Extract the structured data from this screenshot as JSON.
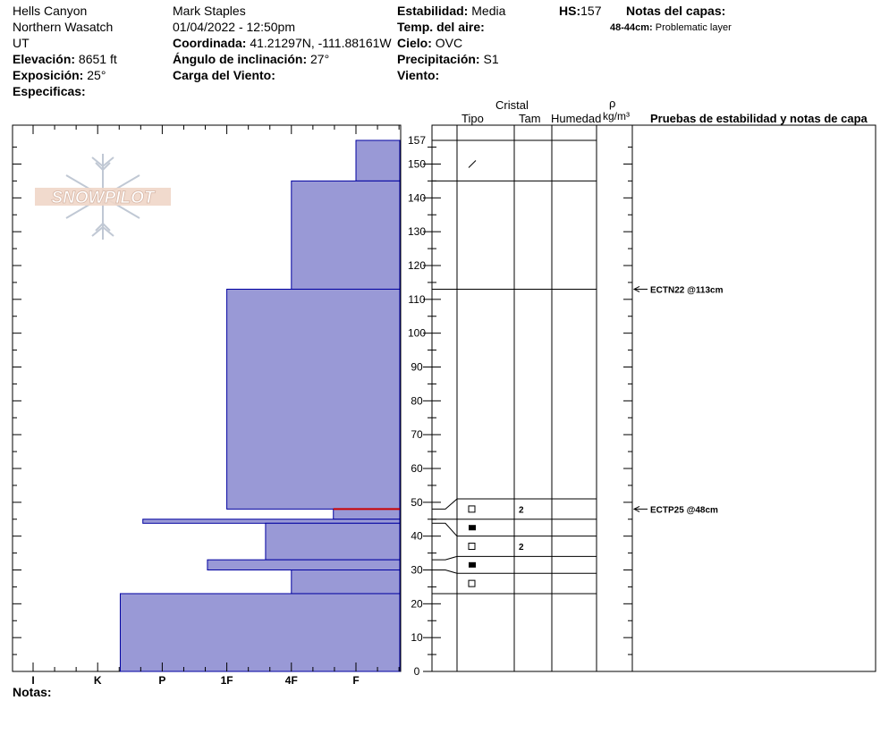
{
  "header": {
    "location": "Hells Canyon",
    "range": "Northern Wasatch",
    "state": "UT",
    "elevation_label": "Elevación:",
    "elevation_value": "8651 ft",
    "aspect_label": "Exposición:",
    "aspect_value": "25°",
    "specifics_label": "Especificas:",
    "observer": "Mark Staples",
    "datetime": "01/04/2022 - 12:50pm",
    "coord_label": "Coordinada:",
    "coord_value": "41.21297N, -111.88161W",
    "slope_label": "Ángulo de inclinación:",
    "slope_value": "27°",
    "wind_load_label": "Carga del Viento:",
    "stability_label": "Estabilidad:",
    "stability_value": "Media",
    "air_temp_label": "Temp. del aire:",
    "sky_label": "Cielo:",
    "sky_value": "OVC",
    "precip_label": "Precipitación:",
    "precip_value": "S1",
    "wind_label": "Viento:",
    "hs_label": "HS:",
    "hs_value": "157",
    "layer_notes_label": "Notas del capas:",
    "layer_note_depth": "48-44cm:",
    "layer_note_text": "Problematic layer",
    "notes_label": "Notas:"
  },
  "logo": {
    "text": "SNOWPILOT"
  },
  "columns": {
    "crystal": "Cristal",
    "type": "Tipo",
    "size": "Tam",
    "moisture": "Humedad",
    "rho": "ρ",
    "density_unit": "kg/m³",
    "tests": "Pruebas de estabilidad y notas de capa"
  },
  "colors": {
    "hardness_fill": "#9999d6",
    "hardness_edge": "#0000a0",
    "weak_layer": "#cc0000"
  },
  "chart_data": {
    "type": "bar",
    "title": "",
    "xlabel": "",
    "ylabel": "",
    "x_ticks": [
      "I",
      "K",
      "P",
      "1F",
      "4F",
      "F"
    ],
    "y_ticks": [
      0,
      10,
      20,
      30,
      40,
      50,
      60,
      70,
      80,
      90,
      100,
      110,
      120,
      130,
      140,
      150,
      157
    ],
    "ylim": [
      0,
      157
    ],
    "grid": false,
    "hardness_layers": [
      {
        "bottom": 145,
        "top": 157,
        "hardness": "F"
      },
      {
        "bottom": 113,
        "top": 145,
        "hardness": "4F"
      },
      {
        "bottom": 48,
        "top": 113,
        "hardness": "1F"
      },
      {
        "bottom": 45,
        "top": 48,
        "hardness": "F+"
      },
      {
        "bottom": 43.8,
        "top": 45,
        "hardness": "P-"
      },
      {
        "bottom": 33,
        "top": 43.8,
        "hardness": "4F-"
      },
      {
        "bottom": 30,
        "top": 33,
        "hardness": "P+"
      },
      {
        "bottom": 23,
        "top": 30,
        "hardness": "4F"
      },
      {
        "bottom": 0,
        "top": 23,
        "hardness": "K+"
      }
    ],
    "hardness_index": {
      "I": 0,
      "K": 1,
      "P": 2,
      "1F": 3,
      "4F": 4,
      "F": 5,
      "F+": 4.65,
      "P-": 1.7,
      "4F-": 3.6,
      "P+": 2.7,
      "K+": 1.35
    },
    "weak_layer_depth": 48,
    "layer_boundaries": [
      157,
      145,
      113,
      51,
      45,
      40,
      34,
      29,
      23
    ],
    "crystals": [
      {
        "depth": 150,
        "symbol": "slash",
        "size": ""
      },
      {
        "depth": 48,
        "symbol": "open-square",
        "size": "2"
      },
      {
        "depth": 42.5,
        "symbol": "filled-square",
        "size": ""
      },
      {
        "depth": 37,
        "symbol": "open-square",
        "size": "2"
      },
      {
        "depth": 31.5,
        "symbol": "filled-square",
        "size": ""
      },
      {
        "depth": 26,
        "symbol": "open-square",
        "size": ""
      }
    ],
    "test_results": [
      {
        "depth": 113,
        "label": "ECTN22 @113cm"
      },
      {
        "depth": 48,
        "label": "ECTP25 @48cm"
      }
    ]
  }
}
